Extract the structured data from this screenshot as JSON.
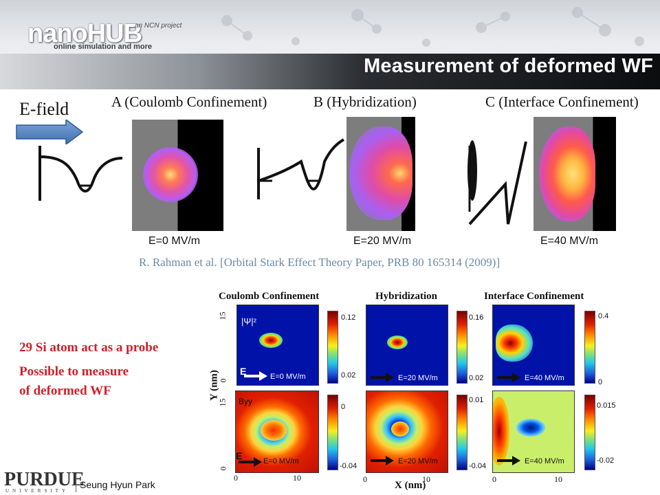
{
  "header": {
    "logo_text": "nanoHUB",
    "ncn_text": "an NCN project",
    "tagline": "online simulation and more",
    "title": "Measurement of deformed WF"
  },
  "top_section": {
    "efield_label": "E-field",
    "columns": [
      {
        "heading": "A (Coulomb Confinement)",
        "field_label": "E=0 MV/m"
      },
      {
        "heading": "B (Hybridization)",
        "field_label": "E=20 MV/m"
      },
      {
        "heading": "C (Interface Confinement)",
        "field_label": "E=40 MV/m"
      }
    ],
    "reference": "R. Rahman et al. [Orbital Stark Effect Theory Paper, PRB 80 165314 (2009)]"
  },
  "notes": {
    "line1": "29 Si atom act as a probe",
    "line2": "Possible to measure",
    "line3": "of deformed WF"
  },
  "grid": {
    "panel_titles": [
      "Coulomb Confinement",
      "Hybridization",
      "Interface Confinement"
    ],
    "y_axis_label": "Y (nm)",
    "x_axis_label": "X (nm)",
    "y_ticks_top": [
      "15",
      "0"
    ],
    "y_ticks_bottom": [
      "15",
      "0"
    ],
    "x_ticks": [
      "0",
      "10"
    ],
    "top_row_label": "|Ψ|²",
    "bottom_row_label": "Byy",
    "e_label": "E",
    "top_fields": [
      "E=0 MV/m",
      "E=20 MV/m",
      "E=40 MV/m"
    ],
    "bottom_fields": [
      "E=0 MV/m",
      "E=20 MV/m",
      "E=40 MV/m"
    ],
    "top_colorbars": [
      [
        "0.12",
        "0.02"
      ],
      [
        "0.16",
        "0.02"
      ],
      [
        "0.4",
        "0"
      ]
    ],
    "bottom_colorbars": [
      [
        "0",
        "-0.04"
      ],
      [
        "0.01",
        "-0.04"
      ],
      [
        "0.015",
        "-0.02"
      ]
    ]
  },
  "footer": {
    "author": "Seung Hyun Park",
    "logo": "PURDUE",
    "logo_sub": "UNIVERSITY"
  },
  "colors": {
    "accent_red": "#d0202a",
    "reference_blue": "#6b8aa7",
    "title_bar": "#0c0d0f"
  }
}
